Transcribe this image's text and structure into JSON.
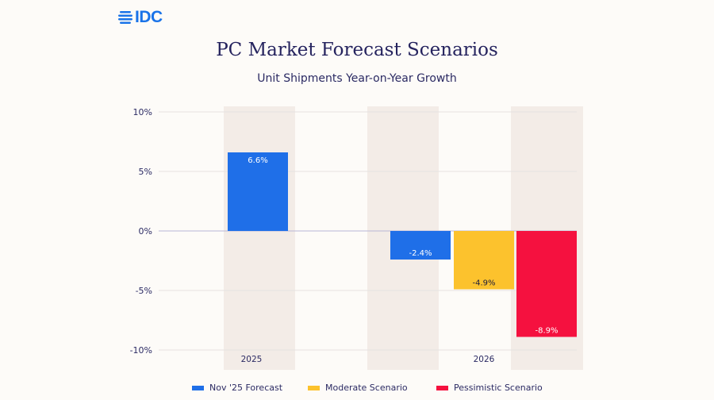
{
  "brand": {
    "logo_text": "IDC"
  },
  "chart_data": {
    "type": "bar",
    "title": "PC Market Forecast Scenarios",
    "subtitle": "Unit Shipments Year-on-Year Growth",
    "categories": [
      "2025",
      "2026"
    ],
    "ylim": [
      -10,
      10
    ],
    "yticks": [
      10,
      5,
      0,
      -5,
      -10
    ],
    "ytick_labels": [
      "10%",
      "5%",
      "0%",
      "-5%",
      "-10%"
    ],
    "grid": true,
    "legend_position": "bottom",
    "series": [
      {
        "name": "Nov '25 Forecast",
        "color": "#1f6fe8",
        "values": [
          6.6,
          -2.4
        ],
        "labels": [
          "6.6%",
          "-2.4%"
        ]
      },
      {
        "name": "Moderate Scenario",
        "color": "#fcc22d",
        "values": [
          null,
          -4.9
        ],
        "labels": [
          null,
          "-4.9%"
        ]
      },
      {
        "name": "Pessimistic Scenario",
        "color": "#f5113f",
        "values": [
          null,
          -8.9
        ],
        "labels": [
          null,
          "-8.9%"
        ]
      }
    ]
  }
}
